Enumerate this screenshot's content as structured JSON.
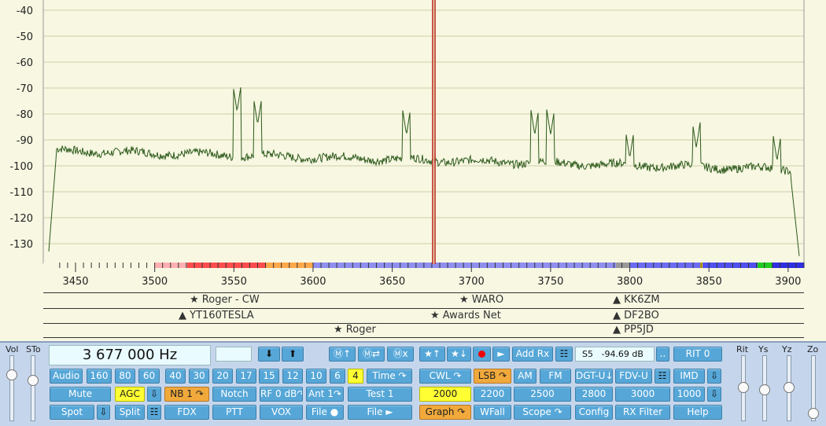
{
  "spectrum": {
    "ylabels": [
      "-40",
      "-50",
      "-60",
      "-70",
      "-80",
      "-90",
      "-100",
      "-110",
      "-120",
      "-130"
    ],
    "xlabels": [
      "3450",
      "3500",
      "3550",
      "3600",
      "3650",
      "3700",
      "3750",
      "3800",
      "3850",
      "3900"
    ]
  },
  "stations": [
    {
      "icon": "★",
      "name": "Roger - CW"
    },
    {
      "icon": "★",
      "name": "WARO"
    },
    {
      "icon": "▲",
      "name": "KK6ZM"
    },
    {
      "icon": "▲",
      "name": "YT160TESLA"
    },
    {
      "icon": "★",
      "name": "Awards Net"
    },
    {
      "icon": "▲",
      "name": "DF2BO"
    },
    {
      "icon": "★",
      "name": "Roger"
    },
    {
      "icon": "▲",
      "name": "PP5JD"
    }
  ],
  "controls": {
    "frequency": "3 677 000 Hz",
    "smeter": "S5   -94.69 dB",
    "slider_labels": {
      "vol": "Vol",
      "sto": "STo",
      "rit": "Rit",
      "ys": "Ys",
      "yz": "Yz",
      "zo": "Zo"
    },
    "buttons": {
      "down_arrow": "⬇",
      "up_arrow": "⬆",
      "mem_up": "Ⓜ↑",
      "mem_swap": "Ⓜ⇄",
      "mem_x": "Ⓜx",
      "star_up": "★↑",
      "star_down": "★↓",
      "play": "►",
      "add_rx": "Add Rx",
      "grid1": "☷",
      "dots": "..",
      "rit": "RIT 0",
      "audio": "Audio",
      "b160": "160",
      "b80": "80",
      "b60": "60",
      "b40": "40",
      "b30": "30",
      "b20": "20",
      "b17": "17",
      "b15": "15",
      "b12": "12",
      "b10": "10",
      "b6": "6",
      "b4": "4",
      "time": "Time ↷",
      "cwl": "CWL ↷",
      "lsb": "LSB ↷",
      "am": "AM",
      "fm": "FM",
      "dgtu": "DGT-U↓",
      "fdvu": "FDV-U",
      "grid2": "☷",
      "imd": "IMD",
      "dl1": "⇩",
      "mute": "Mute",
      "agc": "AGC",
      "dl2": "⇩",
      "nb1": "NB 1 ↷",
      "notch": "Notch",
      "rf": "RF 0 dB↷",
      "ant": "Ant 1↷",
      "test1": "Test 1",
      "w2000": "2000",
      "w2200": "2200",
      "w2500": "2500",
      "w2800": "2800",
      "w3000": "3000",
      "w1000": "1000",
      "dl3": "⇩",
      "spot": "Spot",
      "dl4": "⇩",
      "split": "Split",
      "grid3": "☷",
      "fdx": "FDX",
      "ptt": "PTT",
      "vox": "VOX",
      "file_rec": "File ●",
      "file_play": "File ►",
      "graph": "Graph ↷",
      "wfall": "WFall",
      "scope": "Scope ↷",
      "config": "Config",
      "rxfilter": "RX Filter",
      "help": "Help"
    }
  },
  "colors": {
    "trace": "#2d5a1b",
    "cursor": "#c0392b",
    "bg": "#f7f7e2",
    "button": "#56a7d8"
  }
}
